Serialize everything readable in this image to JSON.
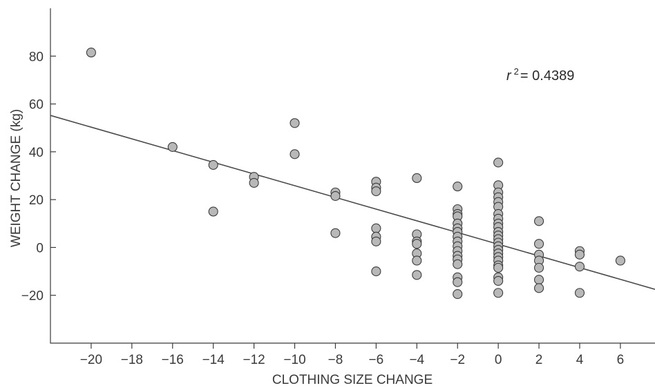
{
  "chart_data": {
    "type": "scatter",
    "xlabel": "CLOTHING SIZE CHANGE",
    "ylabel": "WEIGHT CHANGE (kg)",
    "xlim": [
      -22,
      7.7
    ],
    "ylim": [
      -40,
      100
    ],
    "x_ticks": [
      -20,
      -18,
      -16,
      -14,
      -12,
      -10,
      -8,
      -6,
      -4,
      -2,
      0,
      2,
      4,
      6
    ],
    "y_ticks": [
      -20,
      0,
      20,
      40,
      60,
      80
    ],
    "x_tick_labels": [
      "−20",
      "−18",
      "−16",
      "−14",
      "−12",
      "−10",
      "−8",
      "−6",
      "−4",
      "−2",
      "0",
      "2",
      "4",
      "6"
    ],
    "y_tick_labels": [
      "−20",
      "0",
      "20",
      "40",
      "60",
      "80"
    ],
    "grid": false,
    "annotation": {
      "r_symbol": "r",
      "exponent": "2",
      "value_text": "= 0.4389"
    },
    "trendline": {
      "x": [
        -22,
        7.7
      ],
      "y": [
        55.2,
        -17.5
      ]
    },
    "points": [
      [
        -20,
        81.5
      ],
      [
        -16,
        42
      ],
      [
        -14,
        34.5
      ],
      [
        -14,
        15
      ],
      [
        -12,
        29.5
      ],
      [
        -12,
        27
      ],
      [
        -10,
        52
      ],
      [
        -10,
        39
      ],
      [
        -8,
        23
      ],
      [
        -8,
        21.5
      ],
      [
        -8,
        6
      ],
      [
        -6,
        27.5
      ],
      [
        -6,
        25
      ],
      [
        -6,
        23.5
      ],
      [
        -6,
        8
      ],
      [
        -6,
        4.5
      ],
      [
        -6,
        2.5
      ],
      [
        -6,
        -10
      ],
      [
        -4,
        29
      ],
      [
        -4,
        5.5
      ],
      [
        -4,
        2.5
      ],
      [
        -4,
        1.5
      ],
      [
        -4,
        -2.5
      ],
      [
        -4,
        -5.5
      ],
      [
        -4,
        -11.5
      ],
      [
        -2,
        25.5
      ],
      [
        -2,
        16
      ],
      [
        -2,
        14
      ],
      [
        -2,
        13
      ],
      [
        -2,
        10
      ],
      [
        -2,
        8
      ],
      [
        -2,
        6.5
      ],
      [
        -2,
        4.5
      ],
      [
        -2,
        2.5
      ],
      [
        -2,
        0.5
      ],
      [
        -2,
        -1.5
      ],
      [
        -2,
        -3.5
      ],
      [
        -2,
        -5
      ],
      [
        -2,
        -7
      ],
      [
        -2,
        -12.5
      ],
      [
        -2,
        -14.5
      ],
      [
        -2,
        -19.5
      ],
      [
        0,
        35.5
      ],
      [
        0,
        26
      ],
      [
        0,
        23
      ],
      [
        0,
        21
      ],
      [
        0,
        19
      ],
      [
        0,
        17
      ],
      [
        0,
        14
      ],
      [
        0,
        12
      ],
      [
        0,
        10
      ],
      [
        0,
        8.5
      ],
      [
        0,
        6.5
      ],
      [
        0,
        5
      ],
      [
        0,
        3.5
      ],
      [
        0,
        2
      ],
      [
        0,
        0.5
      ],
      [
        0,
        -1
      ],
      [
        0,
        -2.5
      ],
      [
        0,
        -4
      ],
      [
        0,
        -5.5
      ],
      [
        0,
        -7.5
      ],
      [
        0,
        -8.5
      ],
      [
        0,
        -12.5
      ],
      [
        0,
        -14
      ],
      [
        0,
        -19
      ],
      [
        2,
        11
      ],
      [
        2,
        1.5
      ],
      [
        2,
        -3
      ],
      [
        2,
        -5.5
      ],
      [
        2,
        -8.5
      ],
      [
        2,
        -13.5
      ],
      [
        2,
        -17
      ],
      [
        4,
        -1.5
      ],
      [
        4,
        -3
      ],
      [
        4,
        -8
      ],
      [
        4,
        -19
      ],
      [
        6,
        -5.5
      ]
    ]
  }
}
